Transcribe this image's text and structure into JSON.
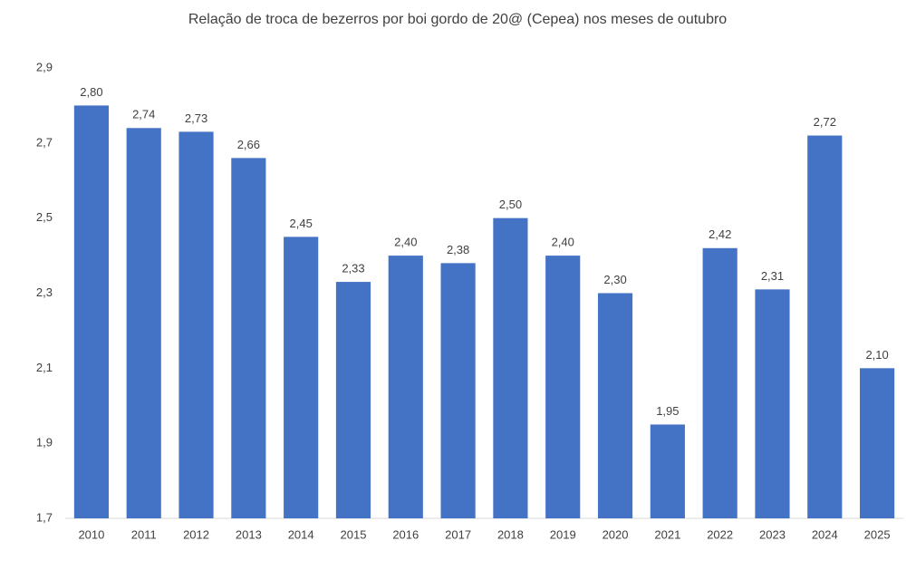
{
  "chart_data": {
    "type": "bar",
    "title": "Relação de troca de bezerros por boi gordo de 20@ (Cepea) nos meses de outubro",
    "categories": [
      "2010",
      "2011",
      "2012",
      "2013",
      "2014",
      "2015",
      "2016",
      "2017",
      "2018",
      "2019",
      "2020",
      "2021",
      "2022",
      "2023",
      "2024",
      "2025"
    ],
    "values": [
      2.8,
      2.74,
      2.73,
      2.66,
      2.45,
      2.33,
      2.4,
      2.38,
      2.5,
      2.4,
      2.3,
      1.95,
      2.42,
      2.31,
      2.72,
      2.1
    ],
    "value_labels": [
      "2,80",
      "2,74",
      "2,73",
      "2,66",
      "2,45",
      "2,33",
      "2,40",
      "2,38",
      "2,50",
      "2,40",
      "2,30",
      "1,95",
      "2,42",
      "2,31",
      "2,72",
      "2,10"
    ],
    "color": "#4472c4",
    "ylim": [
      1.7,
      2.9
    ],
    "yticks": [
      {
        "value": 1.7,
        "label": "1,7"
      },
      {
        "value": 1.9,
        "label": "1,9"
      },
      {
        "value": 2.1,
        "label": "2,1"
      },
      {
        "value": 2.3,
        "label": "2,3"
      },
      {
        "value": 2.5,
        "label": "2,5"
      },
      {
        "value": 2.7,
        "label": "2,7"
      },
      {
        "value": 2.9,
        "label": "2,9"
      }
    ],
    "grid": false
  }
}
